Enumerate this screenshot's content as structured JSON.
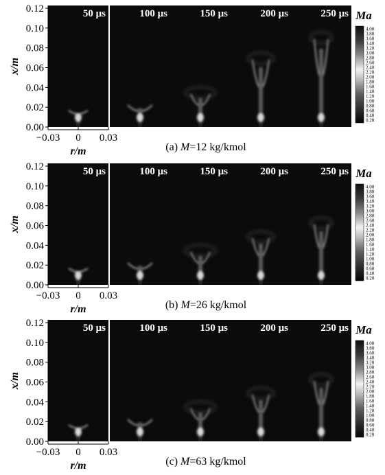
{
  "figure": {
    "y_axis_label": "x/m",
    "x_axis_label": "r/m",
    "y_tick_labels": [
      "0.00",
      "0.02",
      "0.04",
      "0.06",
      "0.08",
      "0.10",
      "0.12"
    ],
    "x_tick_labels": [
      "−0.03",
      "0",
      "0.03"
    ],
    "times": [
      "50 μs",
      "100 μs",
      "150 μs",
      "200 μs",
      "250 μs"
    ],
    "colorbar": {
      "label": "Ma",
      "ticks": [
        "4.00",
        "3.80",
        "3.60",
        "3.40",
        "3.20",
        "3.00",
        "2.80",
        "2.60",
        "2.40",
        "2.20",
        "2.00",
        "1.80",
        "1.60",
        "1.40",
        "1.20",
        "1.00",
        "0.80",
        "0.60",
        "0.40",
        "0.20"
      ],
      "min": 0.2,
      "max": 4.0
    },
    "rows": [
      {
        "caption_prefix": "(a) ",
        "caption_symbol": "M",
        "caption_value": "=12 kg/kmol"
      },
      {
        "caption_prefix": "(b) ",
        "caption_symbol": "M",
        "caption_value": "=26 kg/kmol"
      },
      {
        "caption_prefix": "(c) ",
        "caption_symbol": "M",
        "caption_value": "=63 kg/kmol"
      }
    ]
  }
}
